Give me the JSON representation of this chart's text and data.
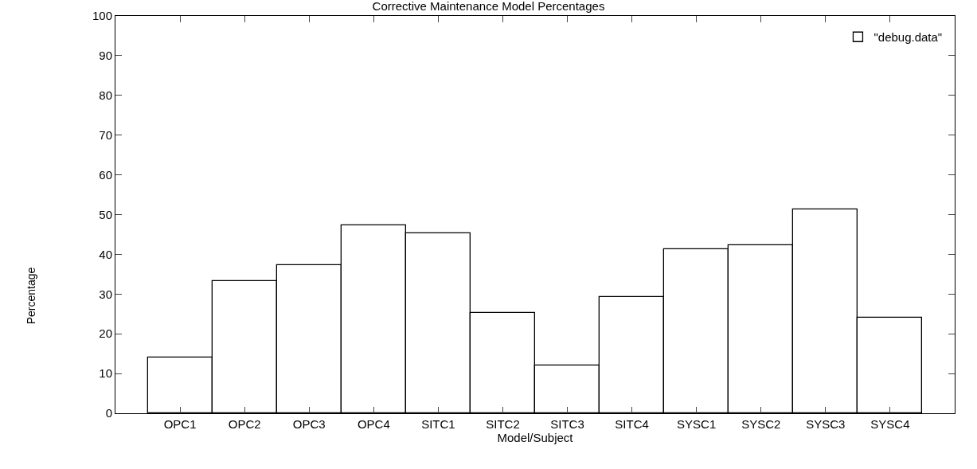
{
  "chart_data": {
    "type": "bar",
    "title": "Corrective Maintenance Model Percentages",
    "xlabel": "Model/Subject",
    "ylabel": "Percentage",
    "categories": [
      "OPC1",
      "OPC2",
      "OPC3",
      "OPC4",
      "SITC1",
      "SITC2",
      "SITC3",
      "SITC4",
      "SYSC1",
      "SYSC2",
      "SYSC3",
      "SYSC4"
    ],
    "series": [
      {
        "name": "\"debug.data\"",
        "color": "#ffffff",
        "values": [
          14.0,
          33.3,
          37.3,
          47.3,
          45.2,
          25.3,
          12.0,
          29.2,
          41.2,
          42.3,
          51.3,
          24.0
        ]
      }
    ],
    "ylim": [
      0,
      100
    ],
    "yticks": [
      0,
      10,
      20,
      30,
      40,
      50,
      60,
      70,
      80,
      90,
      100
    ],
    "legend": "top right"
  }
}
